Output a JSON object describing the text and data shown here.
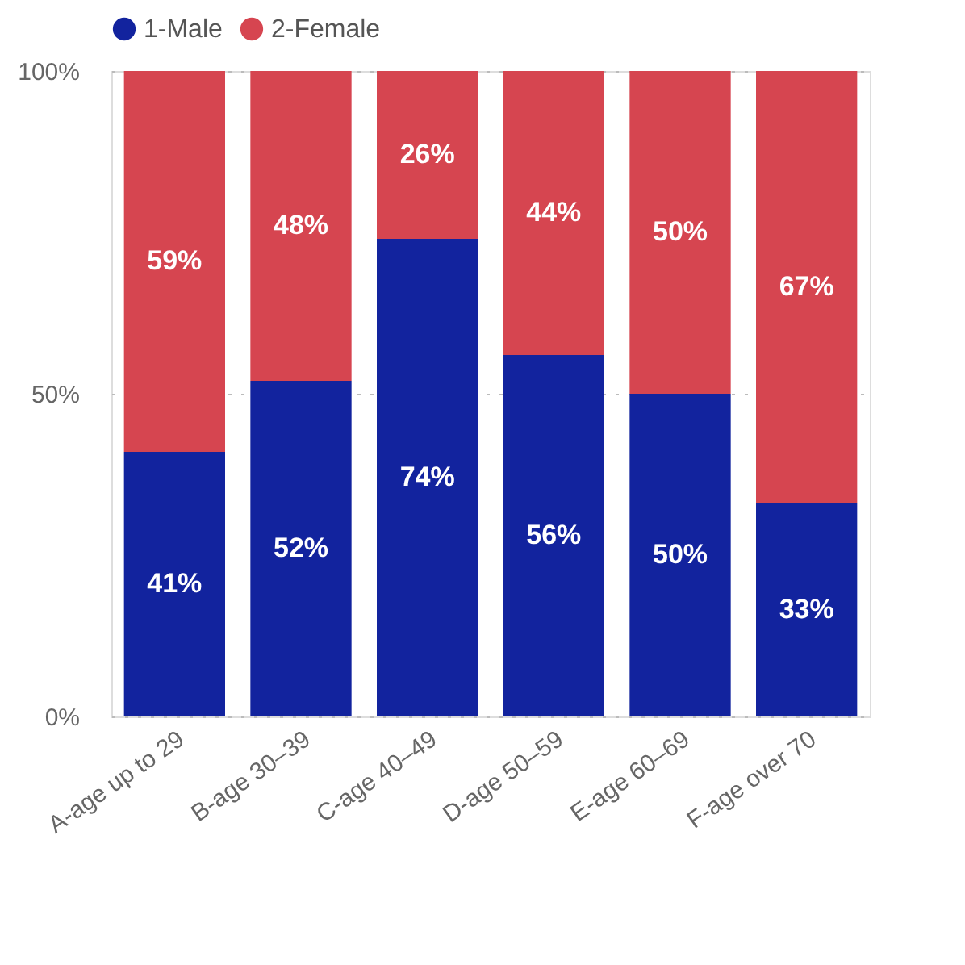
{
  "chart_data": {
    "type": "bar",
    "stacked": true,
    "categories": [
      "A-age up to 29",
      "B-age 30–39",
      "C-age 40–49",
      "D-age 50–59",
      "E-age 60–69",
      "F-age over 70"
    ],
    "series": [
      {
        "name": "1-Male",
        "color": "#12239e",
        "values": [
          41,
          52,
          74,
          56,
          50,
          33
        ]
      },
      {
        "name": "2-Female",
        "color": "#d64550",
        "values": [
          59,
          48,
          26,
          44,
          50,
          67
        ]
      }
    ],
    "ylim": [
      0,
      100
    ],
    "yticks": [
      {
        "value": 0,
        "label": "0%"
      },
      {
        "value": 50,
        "label": "50%"
      },
      {
        "value": 100,
        "label": "100%"
      }
    ],
    "value_labels": [
      [
        "41%",
        "52%",
        "74%",
        "56%",
        "50%",
        "33%"
      ],
      [
        "59%",
        "48%",
        "26%",
        "44%",
        "50%",
        "67%"
      ]
    ],
    "grid": "y",
    "legend": "top"
  }
}
